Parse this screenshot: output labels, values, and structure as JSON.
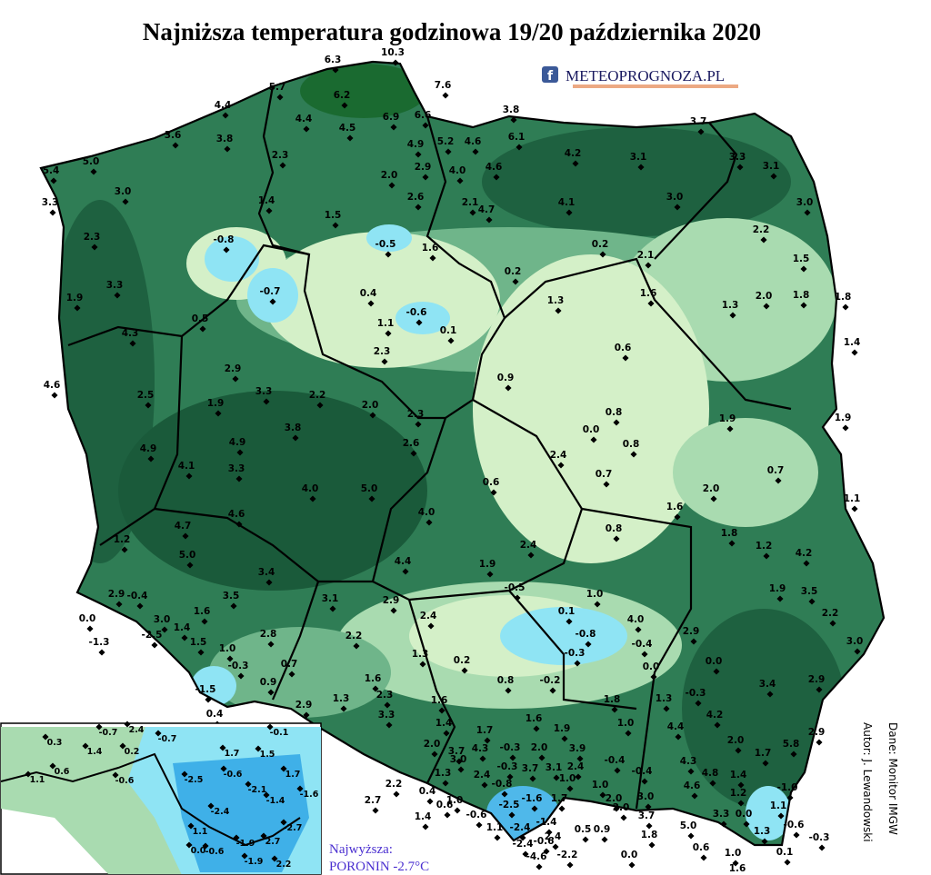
{
  "title": "Najniższa temperatura godzinowa 19/20 października 2020",
  "logo": {
    "icon": "f",
    "text": "METEOPROGNOZA.PL"
  },
  "author": "Autor: J. Lewandowski",
  "source": "Dane: Monitor IMGW",
  "highest": {
    "heading": "Najwyższa:",
    "text": "PORONIN -2.7°C"
  },
  "stations": [
    "6.3",
    "10.3",
    "7.6",
    "5.7",
    "6.2",
    "6.6",
    "4.4",
    "4.4",
    "4.5",
    "6.9",
    "3.8",
    "3.7",
    "3.6",
    "3.8",
    "4.9",
    "5.2",
    "4.6",
    "6.1",
    "4.2",
    "3.1",
    "3.3",
    "3.1",
    "5.0",
    "5.4",
    "2.3",
    "2.0",
    "2.9",
    "4.0",
    "4.6",
    "3.0",
    "3.3",
    "1.4",
    "2.6",
    "2.1",
    "4.7",
    "4.1",
    "3.0",
    "3.0",
    "1.5",
    "2.3",
    "2.2",
    "-0.8",
    "-0.5",
    "1.6",
    "0.2",
    "2.1",
    "1.5",
    "3.3",
    "-0.7",
    "0.2",
    "1.9",
    "0.4",
    "1.6",
    "1.3",
    "2.0",
    "1.8",
    "1.8",
    "1.3",
    "0.5",
    "-0.6",
    "1.1",
    "0.1",
    "4.3",
    "1.4",
    "0.6",
    "2.3",
    "2.9",
    "0.9",
    "4.6",
    "2.5",
    "3.3",
    "2.2",
    "1.9",
    "2.0",
    "2.3",
    "0.8",
    "0.0",
    "0.8",
    "1.9",
    "1.9",
    "3.8",
    "4.9",
    "2.6",
    "4.9",
    "2.4",
    "4.1",
    "3.3",
    "0.7",
    "0.7",
    "0.6",
    "4.0",
    "5.0",
    "2.0",
    "1.1",
    "1.6",
    "4.6",
    "4.0",
    "4.7",
    "0.8",
    "1.8",
    "1.2",
    "1.2",
    "4.2",
    "5.0",
    "2.4",
    "4.4",
    "1.9",
    "3.4",
    "-0.5",
    "1.9",
    "3.5",
    "-0.4",
    "2.9",
    "3.5",
    "1.0",
    "3.1",
    "2.9",
    "0.1",
    "2.2",
    "0.0",
    "1.6",
    "3.0",
    "4.0",
    "2.4",
    "-1.3",
    "-2.5",
    "1.4",
    "-0.8",
    "2.9",
    "2.2",
    "2.8",
    "-0.4",
    "3.0",
    "1.5",
    "1.0",
    "-0.3",
    "1.3",
    "0.2",
    "0.7",
    "0.0",
    "0.0",
    "-0.3",
    "0.9",
    "-1.5",
    "-0.2",
    "0.8",
    "1.6",
    "3.4",
    "2.9",
    "-0.3",
    "2.3",
    "1.3",
    "1.6",
    "1.8",
    "1.3",
    "4.2",
    "0.4",
    "2.9",
    "3.3",
    "1.4",
    "1.0",
    "4.4",
    "1.7",
    "1.6",
    "1.9",
    "2.0",
    "5.8",
    "2.9",
    "2.0",
    "3.7",
    "4.3",
    "-0.3",
    "2.0",
    "3.9",
    "1.7",
    "3.0",
    "-0.3",
    "3.7",
    "3.1",
    "2.4",
    "-0.4",
    "4.3",
    "4.8",
    "1.4",
    "2.4",
    "1.3",
    "-0.8",
    "1.0",
    "-0.4",
    "2.2",
    "1.0",
    "4.6",
    "1.2",
    "-1.0",
    "0.4",
    "1.0",
    "0.6",
    "-1.6",
    "1.7",
    "2.0",
    "3.0",
    "1.1",
    "2.7",
    "1.4",
    "-0.6",
    "-2.5",
    "-1.4",
    "2.0",
    "3.3",
    "0.0",
    "5.0",
    "1.3",
    "-0.6",
    "-0.3",
    "1.1",
    "-2.4",
    "3.7",
    "2.4",
    "0.5",
    "0.9",
    "1.8",
    "-2.4",
    "-0.6",
    "0.6",
    "1.0",
    "0.1",
    "-2.2",
    "0.0",
    "-4.6",
    "1.6"
  ],
  "inset_stations": [
    "0.3",
    "-0.7",
    "2.4",
    "-0.7",
    "-0.1",
    "1.4",
    "0.2",
    "1.7",
    "1.5",
    "1.1",
    "0.6",
    "-0.6",
    "-2.5",
    "-0.6",
    "1.7",
    "-2.1",
    "-1.6",
    "-1.4",
    "-2.4",
    "1.1",
    "-2.7",
    "2.7",
    "-1.9",
    "0.0",
    "-0.6",
    "-1.9",
    "2.2"
  ]
}
